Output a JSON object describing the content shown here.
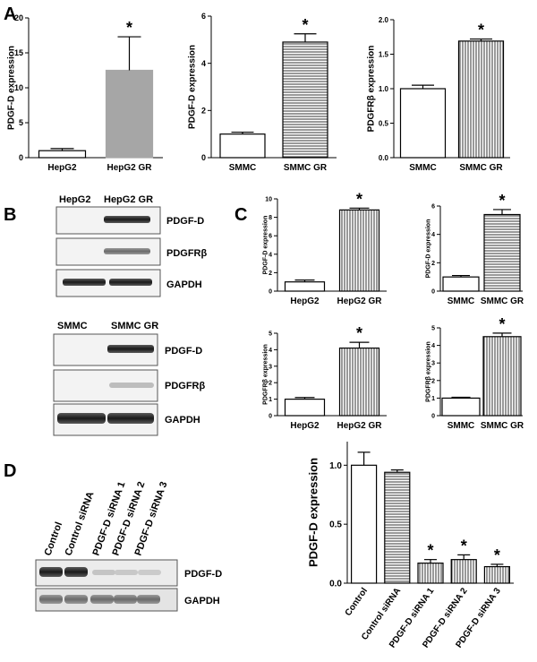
{
  "panels": {
    "a": "A",
    "b": "B",
    "c": "C",
    "d": "D"
  },
  "blots": {
    "hepg2": {
      "lanes": [
        "HepG2",
        "HepG2 GR"
      ],
      "bands": [
        "PDGF-D",
        "PDGFRβ",
        "GAPDH"
      ]
    },
    "smmc": {
      "lanes": [
        "SMMC",
        "SMMC GR"
      ],
      "bands": [
        "PDGF-D",
        "PDGFRβ",
        "GAPDH"
      ]
    },
    "sirna": {
      "lanes": [
        "Control",
        "Control siRNA",
        "PDGF-D siRNA 1",
        "PDGF-D siRNA 2",
        "PDGF-D siRNA 3"
      ],
      "bands": [
        "PDGF-D",
        "GAPDH"
      ]
    }
  },
  "chart_data": [
    {
      "id": "A1",
      "type": "bar",
      "ylabel": "PDGF-D expression",
      "categories": [
        "HepG2",
        "HepG2 GR"
      ],
      "values": [
        1.0,
        12.5
      ],
      "errors": [
        0.3,
        4.8
      ],
      "ylim": [
        0,
        20
      ],
      "yticks": [
        0,
        5,
        10,
        15,
        20
      ],
      "significance": [
        "",
        "*"
      ],
      "fills": [
        "white",
        "gray"
      ]
    },
    {
      "id": "A2",
      "type": "bar",
      "ylabel": "PDGF-D expression",
      "categories": [
        "SMMC",
        "SMMC GR"
      ],
      "values": [
        1.0,
        4.9
      ],
      "errors": [
        0.08,
        0.35
      ],
      "ylim": [
        0,
        6
      ],
      "yticks": [
        0,
        2,
        4,
        6
      ],
      "significance": [
        "",
        "*"
      ],
      "fills": [
        "white",
        "hlines"
      ]
    },
    {
      "id": "A3",
      "type": "bar",
      "ylabel": "PDGFRβ expression",
      "categories": [
        "SMMC",
        "SMMC GR"
      ],
      "values": [
        1.0,
        1.69
      ],
      "errors": [
        0.05,
        0.03
      ],
      "ylim": [
        0,
        2.0
      ],
      "yticks": [
        0.0,
        0.5,
        1.0,
        1.5,
        2.0
      ],
      "significance": [
        "",
        "*"
      ],
      "fills": [
        "white",
        "vlines"
      ]
    },
    {
      "id": "C1",
      "type": "bar",
      "ylabel": "PDGF-D expression",
      "categories": [
        "HepG2",
        "HepG2 GR"
      ],
      "values": [
        1.0,
        8.8
      ],
      "errors": [
        0.2,
        0.2
      ],
      "ylim": [
        0,
        10
      ],
      "yticks": [
        0,
        2,
        4,
        6,
        8,
        10
      ],
      "significance": [
        "",
        "*"
      ],
      "fills": [
        "white",
        "vlines"
      ]
    },
    {
      "id": "C2",
      "type": "bar",
      "ylabel": "PDGF-D expression",
      "categories": [
        "SMMC",
        "SMMC GR"
      ],
      "values": [
        1.0,
        5.4
      ],
      "errors": [
        0.1,
        0.35
      ],
      "ylim": [
        0,
        6
      ],
      "yticks": [
        0,
        2,
        4,
        6
      ],
      "significance": [
        "",
        "*"
      ],
      "fills": [
        "white",
        "hlines"
      ]
    },
    {
      "id": "C3",
      "type": "bar",
      "ylabel": "PDGFRβ expression",
      "categories": [
        "HepG2",
        "HepG2 GR"
      ],
      "values": [
        1.0,
        4.1
      ],
      "errors": [
        0.1,
        0.35
      ],
      "ylim": [
        0,
        5
      ],
      "yticks": [
        0,
        1,
        2,
        3,
        4,
        5
      ],
      "significance": [
        "",
        "*"
      ],
      "fills": [
        "white",
        "vlines"
      ]
    },
    {
      "id": "C4",
      "type": "bar",
      "ylabel": "PDGFRβ expression",
      "categories": [
        "SMMC",
        "SMMC GR"
      ],
      "values": [
        1.0,
        4.5
      ],
      "errors": [
        0.05,
        0.2
      ],
      "ylim": [
        0,
        5
      ],
      "yticks": [
        0,
        1,
        2,
        3,
        4,
        5
      ],
      "significance": [
        "",
        "*"
      ],
      "fills": [
        "white",
        "vlines"
      ]
    },
    {
      "id": "D",
      "type": "bar",
      "ylabel": "PDGF-D expression",
      "categories": [
        "Control",
        "Control siRNA",
        "PDGF-D siRNA 1",
        "PDGF-D siRNA 2",
        "PDGF-D siRNA 3"
      ],
      "values": [
        1.0,
        0.94,
        0.17,
        0.2,
        0.14
      ],
      "errors": [
        0.11,
        0.02,
        0.03,
        0.04,
        0.02
      ],
      "ylim": [
        0,
        1.2
      ],
      "yticks": [
        0.0,
        0.5,
        1.0
      ],
      "significance": [
        "",
        "",
        "*",
        "*",
        "*"
      ],
      "fills": [
        "white",
        "hlines",
        "vlines",
        "vlines",
        "vlines"
      ]
    }
  ]
}
